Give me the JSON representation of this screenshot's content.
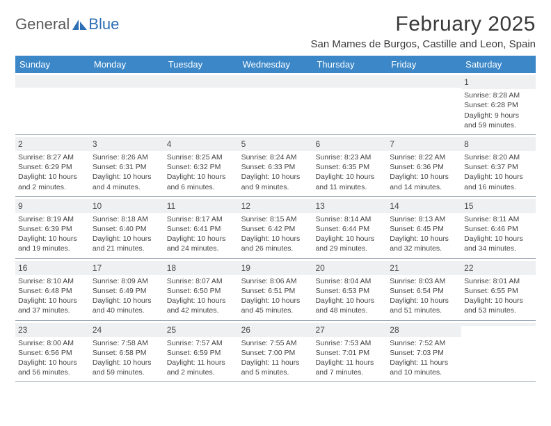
{
  "logo": {
    "general": "General",
    "blue": "Blue"
  },
  "title": "February 2025",
  "location": "San Mames de Burgos, Castille and Leon, Spain",
  "colors": {
    "header_bg": "#3b87c8",
    "header_fg": "#ffffff",
    "daynum_bg": "#eef0f2",
    "border": "#9aa7b3",
    "text": "#3a3a3a",
    "logo_blue": "#2d6fb5"
  },
  "day_headers": [
    "Sunday",
    "Monday",
    "Tuesday",
    "Wednesday",
    "Thursday",
    "Friday",
    "Saturday"
  ],
  "weeks": [
    [
      {
        "n": "",
        "sr": "",
        "ss": "",
        "dl": ""
      },
      {
        "n": "",
        "sr": "",
        "ss": "",
        "dl": ""
      },
      {
        "n": "",
        "sr": "",
        "ss": "",
        "dl": ""
      },
      {
        "n": "",
        "sr": "",
        "ss": "",
        "dl": ""
      },
      {
        "n": "",
        "sr": "",
        "ss": "",
        "dl": ""
      },
      {
        "n": "",
        "sr": "",
        "ss": "",
        "dl": ""
      },
      {
        "n": "1",
        "sr": "Sunrise: 8:28 AM",
        "ss": "Sunset: 6:28 PM",
        "dl": "Daylight: 9 hours and 59 minutes."
      }
    ],
    [
      {
        "n": "2",
        "sr": "Sunrise: 8:27 AM",
        "ss": "Sunset: 6:29 PM",
        "dl": "Daylight: 10 hours and 2 minutes."
      },
      {
        "n": "3",
        "sr": "Sunrise: 8:26 AM",
        "ss": "Sunset: 6:31 PM",
        "dl": "Daylight: 10 hours and 4 minutes."
      },
      {
        "n": "4",
        "sr": "Sunrise: 8:25 AM",
        "ss": "Sunset: 6:32 PM",
        "dl": "Daylight: 10 hours and 6 minutes."
      },
      {
        "n": "5",
        "sr": "Sunrise: 8:24 AM",
        "ss": "Sunset: 6:33 PM",
        "dl": "Daylight: 10 hours and 9 minutes."
      },
      {
        "n": "6",
        "sr": "Sunrise: 8:23 AM",
        "ss": "Sunset: 6:35 PM",
        "dl": "Daylight: 10 hours and 11 minutes."
      },
      {
        "n": "7",
        "sr": "Sunrise: 8:22 AM",
        "ss": "Sunset: 6:36 PM",
        "dl": "Daylight: 10 hours and 14 minutes."
      },
      {
        "n": "8",
        "sr": "Sunrise: 8:20 AM",
        "ss": "Sunset: 6:37 PM",
        "dl": "Daylight: 10 hours and 16 minutes."
      }
    ],
    [
      {
        "n": "9",
        "sr": "Sunrise: 8:19 AM",
        "ss": "Sunset: 6:39 PM",
        "dl": "Daylight: 10 hours and 19 minutes."
      },
      {
        "n": "10",
        "sr": "Sunrise: 8:18 AM",
        "ss": "Sunset: 6:40 PM",
        "dl": "Daylight: 10 hours and 21 minutes."
      },
      {
        "n": "11",
        "sr": "Sunrise: 8:17 AM",
        "ss": "Sunset: 6:41 PM",
        "dl": "Daylight: 10 hours and 24 minutes."
      },
      {
        "n": "12",
        "sr": "Sunrise: 8:15 AM",
        "ss": "Sunset: 6:42 PM",
        "dl": "Daylight: 10 hours and 26 minutes."
      },
      {
        "n": "13",
        "sr": "Sunrise: 8:14 AM",
        "ss": "Sunset: 6:44 PM",
        "dl": "Daylight: 10 hours and 29 minutes."
      },
      {
        "n": "14",
        "sr": "Sunrise: 8:13 AM",
        "ss": "Sunset: 6:45 PM",
        "dl": "Daylight: 10 hours and 32 minutes."
      },
      {
        "n": "15",
        "sr": "Sunrise: 8:11 AM",
        "ss": "Sunset: 6:46 PM",
        "dl": "Daylight: 10 hours and 34 minutes."
      }
    ],
    [
      {
        "n": "16",
        "sr": "Sunrise: 8:10 AM",
        "ss": "Sunset: 6:48 PM",
        "dl": "Daylight: 10 hours and 37 minutes."
      },
      {
        "n": "17",
        "sr": "Sunrise: 8:09 AM",
        "ss": "Sunset: 6:49 PM",
        "dl": "Daylight: 10 hours and 40 minutes."
      },
      {
        "n": "18",
        "sr": "Sunrise: 8:07 AM",
        "ss": "Sunset: 6:50 PM",
        "dl": "Daylight: 10 hours and 42 minutes."
      },
      {
        "n": "19",
        "sr": "Sunrise: 8:06 AM",
        "ss": "Sunset: 6:51 PM",
        "dl": "Daylight: 10 hours and 45 minutes."
      },
      {
        "n": "20",
        "sr": "Sunrise: 8:04 AM",
        "ss": "Sunset: 6:53 PM",
        "dl": "Daylight: 10 hours and 48 minutes."
      },
      {
        "n": "21",
        "sr": "Sunrise: 8:03 AM",
        "ss": "Sunset: 6:54 PM",
        "dl": "Daylight: 10 hours and 51 minutes."
      },
      {
        "n": "22",
        "sr": "Sunrise: 8:01 AM",
        "ss": "Sunset: 6:55 PM",
        "dl": "Daylight: 10 hours and 53 minutes."
      }
    ],
    [
      {
        "n": "23",
        "sr": "Sunrise: 8:00 AM",
        "ss": "Sunset: 6:56 PM",
        "dl": "Daylight: 10 hours and 56 minutes."
      },
      {
        "n": "24",
        "sr": "Sunrise: 7:58 AM",
        "ss": "Sunset: 6:58 PM",
        "dl": "Daylight: 10 hours and 59 minutes."
      },
      {
        "n": "25",
        "sr": "Sunrise: 7:57 AM",
        "ss": "Sunset: 6:59 PM",
        "dl": "Daylight: 11 hours and 2 minutes."
      },
      {
        "n": "26",
        "sr": "Sunrise: 7:55 AM",
        "ss": "Sunset: 7:00 PM",
        "dl": "Daylight: 11 hours and 5 minutes."
      },
      {
        "n": "27",
        "sr": "Sunrise: 7:53 AM",
        "ss": "Sunset: 7:01 PM",
        "dl": "Daylight: 11 hours and 7 minutes."
      },
      {
        "n": "28",
        "sr": "Sunrise: 7:52 AM",
        "ss": "Sunset: 7:03 PM",
        "dl": "Daylight: 11 hours and 10 minutes."
      },
      {
        "n": "",
        "sr": "",
        "ss": "",
        "dl": ""
      }
    ]
  ]
}
